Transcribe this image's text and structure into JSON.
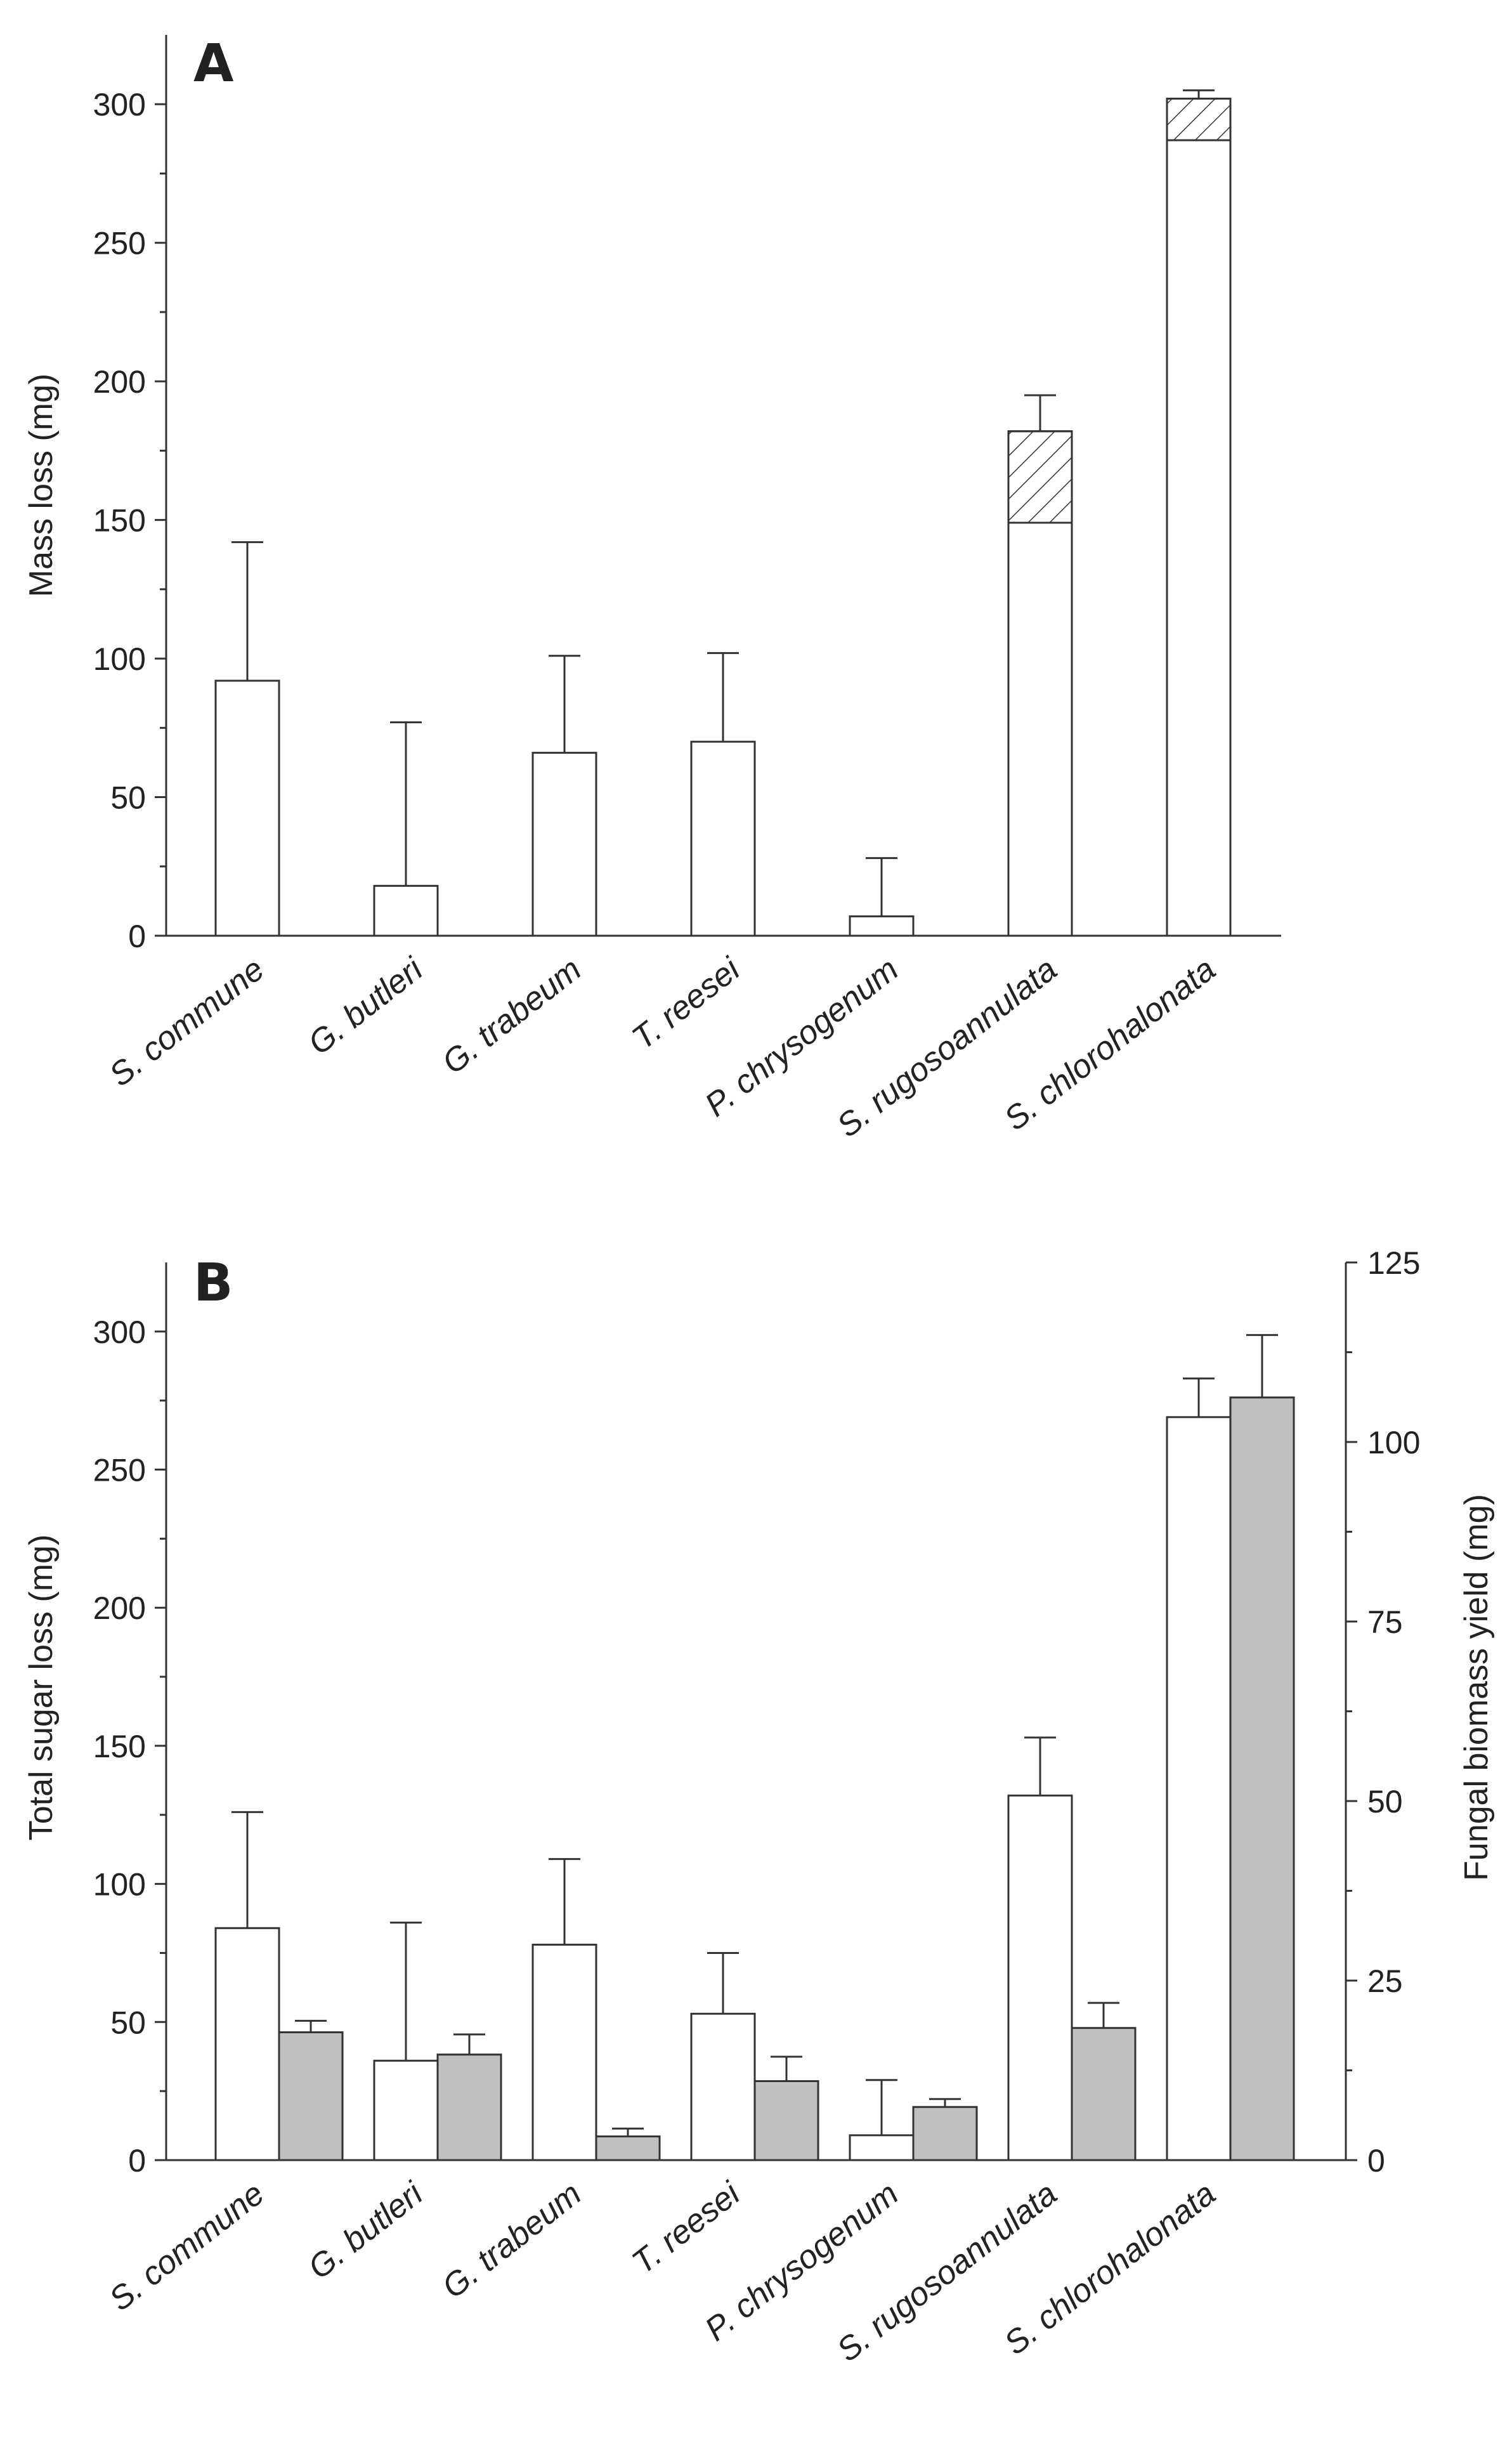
{
  "chart_data": [
    {
      "type": "bar",
      "panel_label": "A",
      "ylabel": "Mass loss (mg)",
      "ylim": [
        0,
        325
      ],
      "yticks": [
        0,
        50,
        100,
        150,
        200,
        250,
        300
      ],
      "categories": [
        "S. commune",
        "G. butleri",
        "G. trabeum",
        "T. reesei",
        "P. chrysogenum",
        "S. rugosoannulata",
        "S. chlorohalonata"
      ],
      "series": [
        {
          "name": "Mass loss",
          "fill": "#ffffff",
          "values": [
            92,
            18,
            66,
            70,
            7,
            182,
            302
          ],
          "error": [
            50,
            59,
            35,
            32,
            21,
            13,
            3
          ],
          "hatched_segment": [
            null,
            null,
            null,
            null,
            null,
            [
              149,
              182
            ],
            [
              287,
              302
            ]
          ]
        }
      ]
    },
    {
      "type": "bar",
      "panel_label": "B",
      "ylabel": "Total sugar loss (mg)",
      "ylabel_right": "Fungal biomass yield (mg)",
      "ylim": [
        0,
        325
      ],
      "yticks": [
        0,
        50,
        100,
        150,
        200,
        250,
        300
      ],
      "ylim_right": [
        0,
        125
      ],
      "yticks_right": [
        0,
        25,
        50,
        75,
        100,
        125
      ],
      "categories": [
        "S. commune",
        "G. butleri",
        "G. trabeum",
        "T. reesei",
        "P. chrysogenum",
        "S. rugosoannulata",
        "S. chlorohalonata"
      ],
      "series": [
        {
          "name": "Total sugar loss",
          "axis": "left",
          "fill": "#ffffff",
          "values": [
            84,
            36,
            78,
            53,
            9,
            132,
            269
          ],
          "error": [
            42,
            50,
            31,
            22,
            20,
            21,
            14
          ]
        },
        {
          "name": "Fungal biomass yield",
          "axis": "right",
          "fill": "#c0c0c0",
          "values": [
            17.8,
            14.7,
            3.3,
            11.0,
            7.4,
            18.4,
            106.2
          ],
          "error": [
            1.6,
            2.8,
            1.1,
            3.4,
            1.1,
            3.5,
            8.7
          ]
        }
      ]
    }
  ]
}
